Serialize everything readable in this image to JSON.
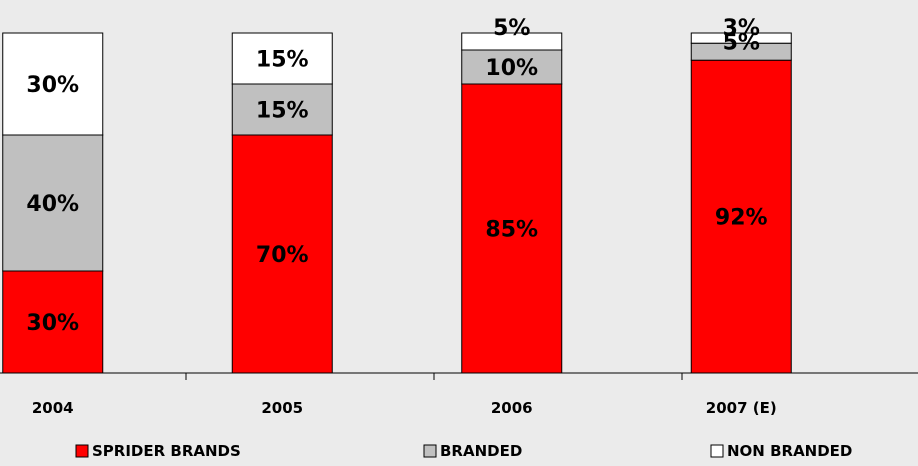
{
  "chart_data": {
    "type": "bar",
    "stacked": true,
    "categories": [
      "2004",
      "2005",
      "2006",
      "2007 (E)"
    ],
    "series": [
      {
        "name": "SPRIDER BRANDS",
        "color": "#ff0000",
        "values": [
          30,
          70,
          85,
          92
        ],
        "labels": [
          "30%",
          "70%",
          "85%",
          "92%"
        ]
      },
      {
        "name": "BRANDED",
        "color": "#c0c0c0",
        "values": [
          40,
          15,
          10,
          5
        ],
        "labels": [
          "40%",
          "15%",
          "10%",
          "5%"
        ]
      },
      {
        "name": "NON BRANDED",
        "color": "#ffffff",
        "values": [
          30,
          15,
          5,
          3
        ],
        "labels": [
          "30%",
          "15%",
          "5%",
          "3%"
        ]
      }
    ],
    "ylim": [
      0,
      100
    ],
    "grid": false,
    "legend": "bottom",
    "title": "",
    "xlabel": "",
    "ylabel": ""
  }
}
